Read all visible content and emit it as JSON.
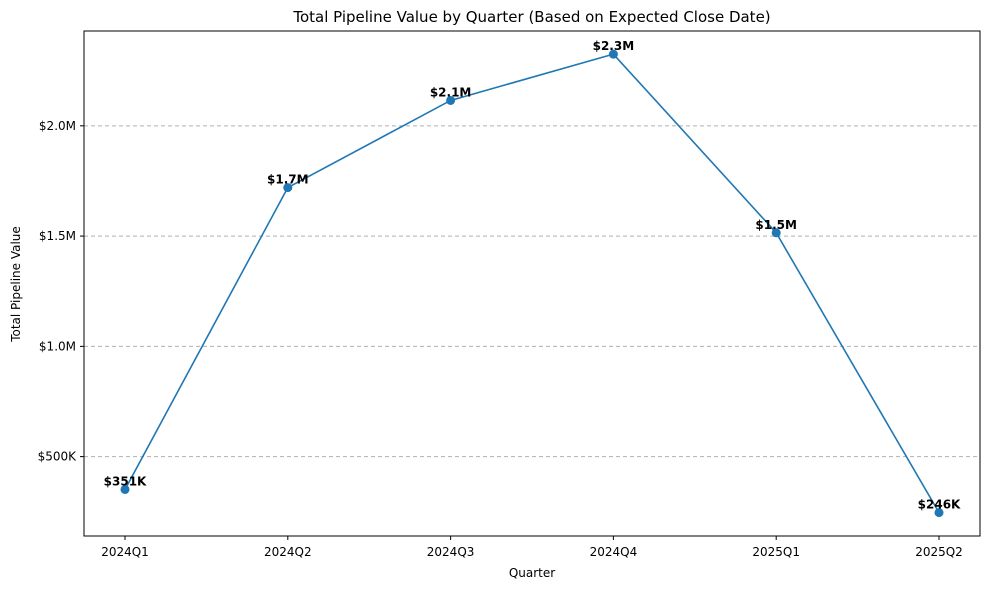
{
  "chart_data": {
    "type": "line",
    "title": "Total Pipeline Value by Quarter (Based on Expected Close Date)",
    "xlabel": "Quarter",
    "ylabel": "Total Pipeline Value",
    "categories": [
      "2024Q1",
      "2024Q2",
      "2024Q3",
      "2024Q4",
      "2025Q1",
      "2025Q2"
    ],
    "values": [
      351000,
      1720000,
      2115000,
      2325000,
      1515000,
      246000
    ],
    "data_labels": [
      "$351K",
      "$1.7M",
      "$2.1M",
      "$2.3M",
      "$1.5M",
      "$246K"
    ],
    "yticks": [
      {
        "value": 500000,
        "label": "$500K"
      },
      {
        "value": 1000000,
        "label": "$1.0M"
      },
      {
        "value": 1500000,
        "label": "$1.5M"
      },
      {
        "value": 2000000,
        "label": "$2.0M"
      }
    ],
    "ylim": [
      140000,
      2430000
    ],
    "grid": "y-dashed",
    "legend": "none",
    "color": "#1f77b4"
  }
}
